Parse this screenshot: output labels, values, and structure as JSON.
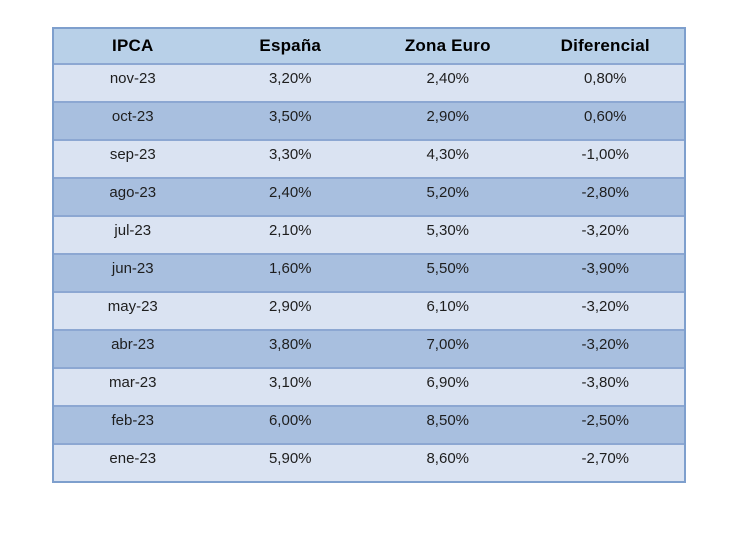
{
  "chart_data": {
    "type": "table",
    "columns": [
      "IPCA",
      "España",
      "Zona Euro",
      "Diferencial"
    ],
    "rows": [
      [
        "nov-23",
        "3,20%",
        "2,40%",
        "0,80%"
      ],
      [
        "oct-23",
        "3,50%",
        "2,90%",
        "0,60%"
      ],
      [
        "sep-23",
        "3,30%",
        "4,30%",
        "-1,00%"
      ],
      [
        "ago-23",
        "2,40%",
        "5,20%",
        "-2,80%"
      ],
      [
        "jul-23",
        "2,10%",
        "5,30%",
        "-3,20%"
      ],
      [
        "jun-23",
        "1,60%",
        "5,50%",
        "-3,90%"
      ],
      [
        "may-23",
        "2,90%",
        "6,10%",
        "-3,20%"
      ],
      [
        "abr-23",
        "3,80%",
        "7,00%",
        "-3,20%"
      ],
      [
        "mar-23",
        "3,10%",
        "6,90%",
        "-3,80%"
      ],
      [
        "feb-23",
        "6,00%",
        "8,50%",
        "-2,50%"
      ],
      [
        "ene-23",
        "5,90%",
        "8,60%",
        "-2,70%"
      ]
    ],
    "layout": {
      "grid": "horizontal-only",
      "banding": "alternating starting light",
      "text_align": "center",
      "header_bold": true
    }
  },
  "table": {
    "colors": {
      "page_bg": "#ffffff",
      "header_bg": "#b8d0e8",
      "row_light": "#dae3f2",
      "row_dark": "#a8bfdf",
      "grid_border": "#8ca7d2",
      "outer_border": "#7e9fcd",
      "header_text": "#000000",
      "cell_text": "#1e1e1e"
    }
  }
}
